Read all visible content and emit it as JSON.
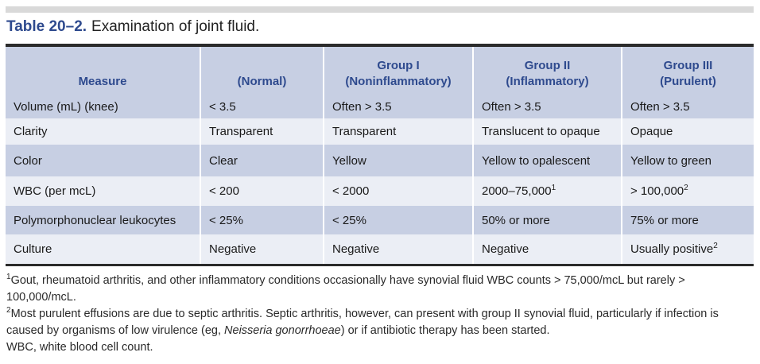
{
  "title": {
    "number": "Table 20–2.",
    "text": "Examination of joint fluid."
  },
  "table": {
    "headers": [
      {
        "line1": "",
        "line2": "Measure"
      },
      {
        "line1": "",
        "line2": "(Normal)"
      },
      {
        "line1": "Group I",
        "line2": "(Noninflammatory)"
      },
      {
        "line1": "Group II",
        "line2": "(Inflammatory)"
      },
      {
        "line1": "Group III",
        "line2": "(Purulent)"
      }
    ],
    "rows": [
      {
        "cells": [
          "Volume (mL) (knee)",
          "< 3.5",
          "Often > 3.5",
          "Often > 3.5",
          "Often > 3.5"
        ],
        "sups": [
          "",
          "",
          "",
          "",
          ""
        ]
      },
      {
        "cells": [
          "Clarity",
          "Transparent",
          "Transparent",
          "Translucent to opaque",
          "Opaque"
        ],
        "sups": [
          "",
          "",
          "",
          "",
          ""
        ]
      },
      {
        "cells": [
          "Color",
          "Clear",
          "Yellow",
          "Yellow to opalescent",
          "Yellow to green"
        ],
        "sups": [
          "",
          "",
          "",
          "",
          ""
        ]
      },
      {
        "cells": [
          "WBC (per mcL)",
          "< 200",
          "< 2000",
          "2000–75,000",
          "> 100,000"
        ],
        "sups": [
          "",
          "",
          "",
          "1",
          "2"
        ]
      },
      {
        "cells": [
          "Polymorphonuclear leukocytes",
          "< 25%",
          "< 25%",
          "50% or more",
          "75% or more"
        ],
        "sups": [
          "",
          "",
          "",
          "",
          ""
        ]
      },
      {
        "cells": [
          "Culture",
          "Negative",
          "Negative",
          "Negative",
          "Usually positive"
        ],
        "sups": [
          "",
          "",
          "",
          "",
          "2"
        ]
      }
    ]
  },
  "footnotes": {
    "note1_mark": "1",
    "note1": "Gout, rheumatoid arthritis, and other inflammatory conditions occasionally have synovial fluid WBC counts > 75,000/mcL but rarely > 100,000/mcL.",
    "note2_mark": "2",
    "note2_a": "Most purulent effusions are due to septic arthritis. Septic arthritis, however, can present with group II synovial fluid, particularly if infection is caused by organisms of low virulence (eg, ",
    "note2_italic": "Neisseria gonorrhoeae",
    "note2_b": ") or if antibiotic therapy has been started.",
    "abbrev": "WBC, white blood cell count."
  },
  "colors": {
    "header_bg": "#c7cfe3",
    "header_text": "#2e4a8e",
    "stripe_dark": "#c7cfe3",
    "stripe_light": "#ebeef5",
    "rule": "#2b2b2b"
  }
}
